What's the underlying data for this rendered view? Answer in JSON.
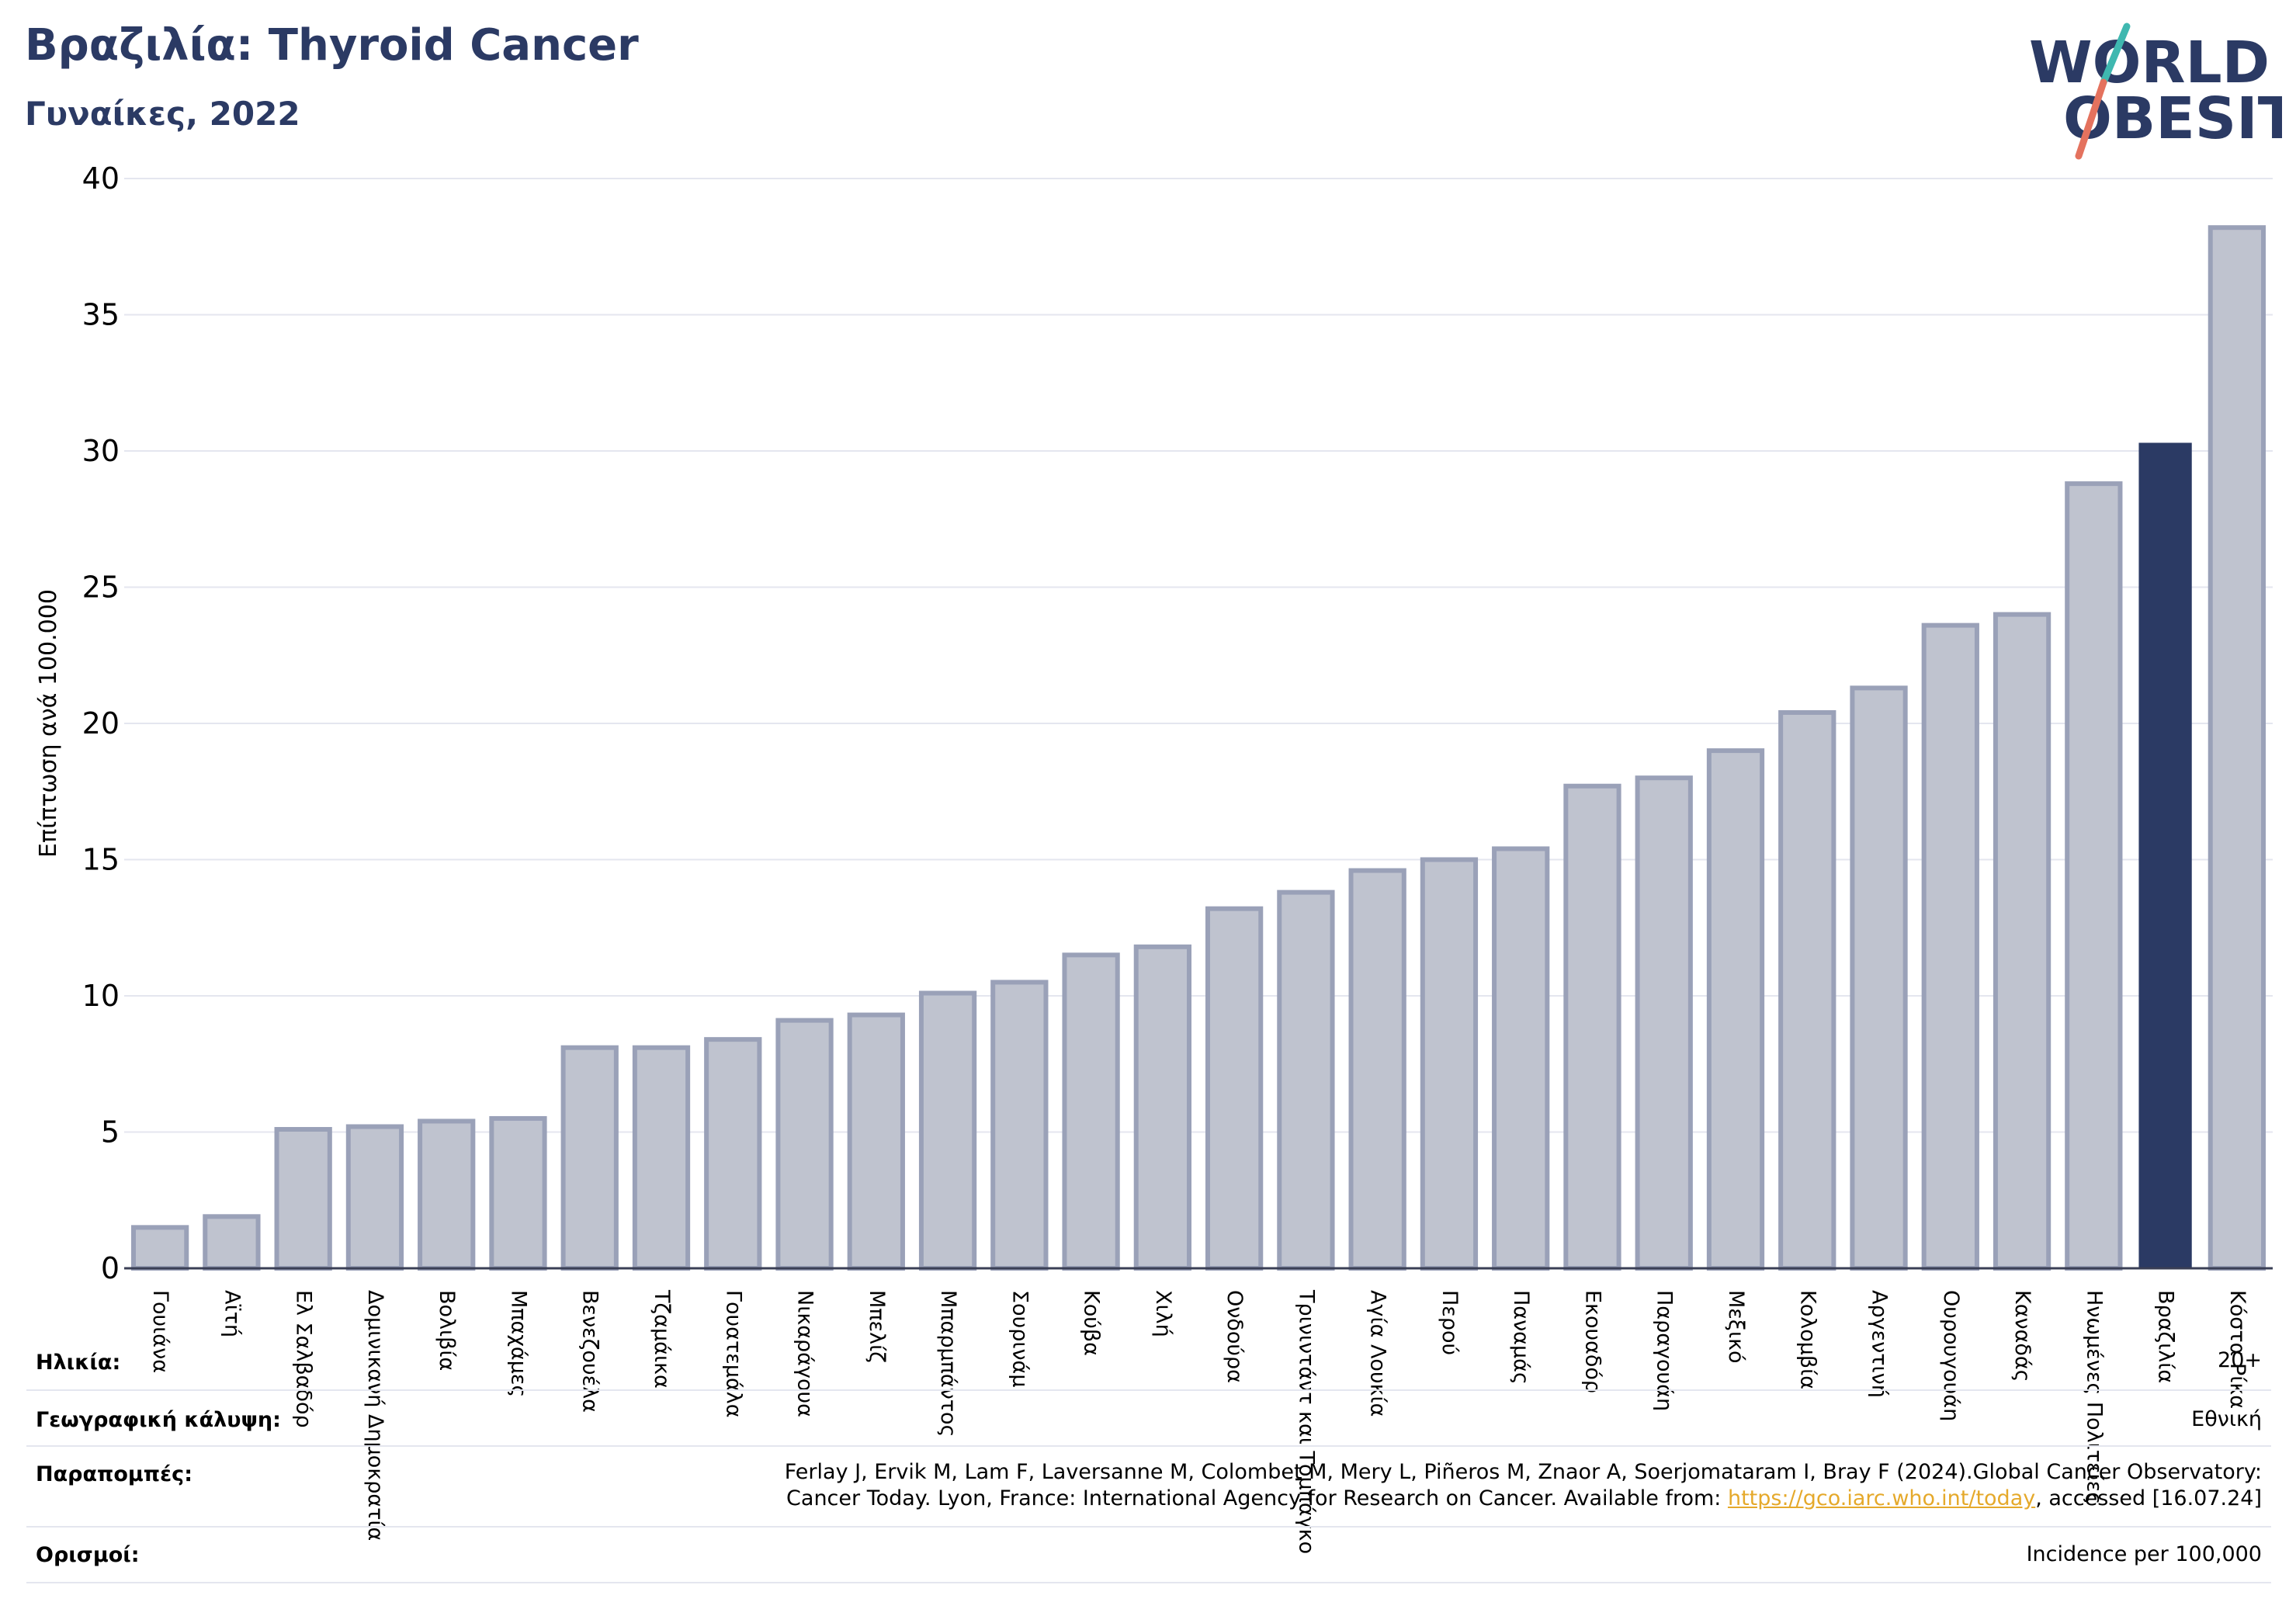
{
  "title": "Βραζιλία: Thyroid Cancer",
  "subtitle": "Γυναίκες, 2022",
  "logo": {
    "line1": "WORLD",
    "line2": "OBESITY"
  },
  "colors": {
    "bar": "#bfc3cf",
    "bar_edge": "#9aa1b8",
    "highlight": "#2b3a64",
    "title": "#2b3a64",
    "grid": "#e4e6ef",
    "logo_slash_top": "#3fb8b0",
    "logo_slash_bottom": "#e4725e",
    "link": "#e5a92b"
  },
  "chart_data": {
    "type": "bar",
    "ylabel": "Επίπτωση ανά 100.000",
    "ylim": [
      0,
      40
    ],
    "yticks": [
      0,
      5,
      10,
      15,
      20,
      25,
      30,
      35,
      40
    ],
    "grid": true,
    "highlight": "Βραζιλία",
    "categories": [
      "Γουιάνα",
      "Αϊτή",
      "Ελ Σαλβαδόρ",
      "Δομινικανή Δημοκρατία",
      "Βολιβία",
      "Μπαχάμες",
      "Βενεζουέλα",
      "Τζαμάικα",
      "Γουατεμάλα",
      "Νικαράγουα",
      "Μπελίζ",
      "Μπαρμπάντος",
      "Σουρινάμ",
      "Κούβα",
      "Χιλή",
      "Ονδούρα",
      "Τρινιντάντ και Τομπάγκο",
      "Αγία Λουκία",
      "Περού",
      "Παναμάς",
      "Εκουαδόρ",
      "Παραγουάη",
      "Μεξικό",
      "Κολομβία",
      "Αργεντινή",
      "Ουρουγουάη",
      "Καναδάς",
      "Ηνωμένες Πολιτείες",
      "Βραζιλία",
      "Κόστα Ρίκα"
    ],
    "values": [
      1.5,
      1.9,
      5.1,
      5.2,
      5.4,
      5.5,
      8.1,
      8.1,
      8.4,
      9.1,
      9.3,
      10.1,
      10.5,
      11.5,
      11.8,
      13.2,
      13.8,
      14.6,
      15.0,
      15.4,
      17.7,
      18.0,
      19.0,
      20.4,
      21.3,
      23.6,
      24.0,
      28.8,
      30.3,
      38.2
    ]
  },
  "footer": {
    "age_label": "Ηλικία:",
    "age_value": "20+",
    "coverage_label": "Γεωγραφική κάλυψη:",
    "coverage_value": "Εθνική",
    "references_label": "Παραπομπές:",
    "references_line1": "Ferlay J, Ervik M, Lam F, Laversanne M, Colombet M, Mery L, Piñeros M, Znaor A, Soerjomataram I, Bray F (2024).Global Cancer Observatory:",
    "references_line2_pre": "Cancer Today. Lyon, France: International Agency for Research on Cancer. Available from: ",
    "references_link": "https://gco.iarc.who.int/today",
    "references_line2_post": ", accessed [16.07.24]",
    "definitions_label": "Ορισμοί:",
    "definitions_value": "Incidence per 100,000"
  }
}
